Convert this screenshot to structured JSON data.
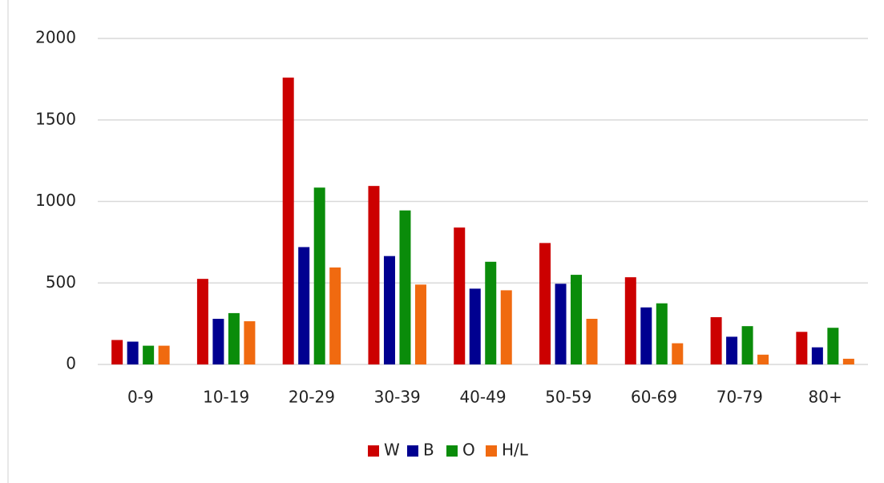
{
  "chart_data": {
    "type": "bar",
    "categories": [
      "0-9",
      "10-19",
      "20-29",
      "30-39",
      "40-49",
      "50-59",
      "60-69",
      "70-79",
      "80+"
    ],
    "series": [
      {
        "name": "W",
        "color": "#cc0000",
        "values": [
          150,
          525,
          1760,
          1095,
          840,
          745,
          535,
          290,
          200
        ]
      },
      {
        "name": "B",
        "color": "#000090",
        "values": [
          140,
          280,
          720,
          665,
          465,
          495,
          350,
          170,
          105
        ]
      },
      {
        "name": "O",
        "color": "#0a8c0a",
        "values": [
          115,
          315,
          1085,
          945,
          630,
          550,
          375,
          235,
          225
        ]
      },
      {
        "name": "H/L",
        "color": "#f06a10",
        "values": [
          115,
          265,
          595,
          490,
          455,
          280,
          130,
          60,
          35
        ]
      }
    ],
    "ylim": [
      0,
      2000
    ],
    "yticks": [
      0,
      500,
      1000,
      1500,
      2000
    ],
    "grid": true,
    "legend": "bottom"
  }
}
